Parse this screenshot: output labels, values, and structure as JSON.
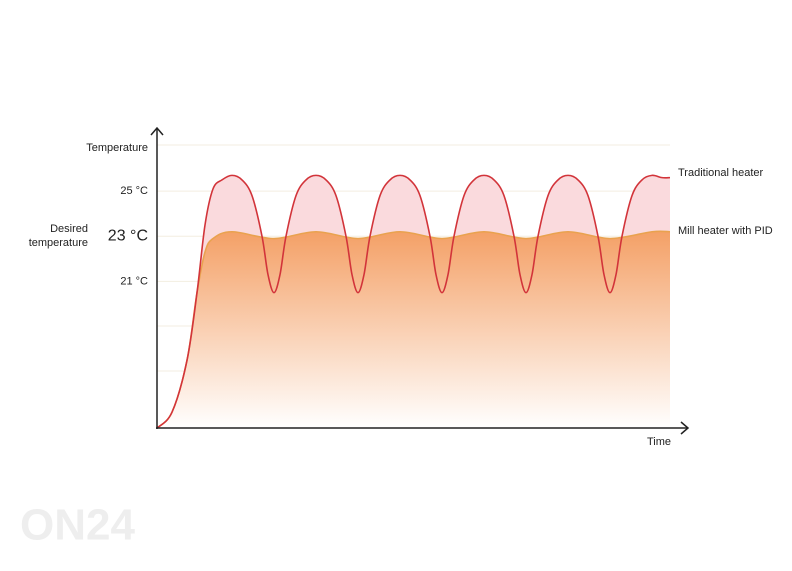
{
  "chart_data": {
    "type": "line",
    "y_label": "Temperature",
    "x_label": "Time",
    "annotation": "Desired temperature",
    "watermark": "ON24",
    "ylim": [
      14.5,
      27.8
    ],
    "yticks": [
      {
        "value": 25,
        "label": "25 °C"
      },
      {
        "value": 23,
        "label": "23 °C"
      },
      {
        "value": 21,
        "label": "21 °C"
      }
    ],
    "xlim": [
      0,
      513
    ],
    "grid": true,
    "series": [
      {
        "name": "Traditional heater",
        "color": "#d2343a",
        "fill": "#fadadd",
        "x": [
          0,
          15,
          30,
          40,
          48,
          56,
          65,
          75,
          85,
          95,
          105,
          111,
          117,
          123,
          129,
          139,
          149,
          159,
          169,
          179,
          189,
          195,
          201,
          207,
          213,
          223,
          233,
          243,
          253,
          263,
          273,
          279,
          285,
          291,
          297,
          307,
          317,
          327,
          337,
          347,
          357,
          363,
          369,
          375,
          381,
          391,
          401,
          411,
          421,
          431,
          441,
          447,
          453,
          459,
          465,
          475,
          485,
          495,
          505,
          513
        ],
        "values": [
          14.5,
          15.2,
          17.5,
          20.5,
          23.5,
          25.1,
          25.5,
          25.7,
          25.5,
          24.8,
          23,
          21.3,
          20.5,
          21.3,
          23,
          24.8,
          25.5,
          25.7,
          25.5,
          24.8,
          23,
          21.3,
          20.5,
          21.3,
          23,
          24.8,
          25.5,
          25.7,
          25.5,
          24.8,
          23,
          21.3,
          20.5,
          21.3,
          23,
          24.8,
          25.5,
          25.7,
          25.5,
          24.8,
          23,
          21.3,
          20.5,
          21.3,
          23,
          24.8,
          25.5,
          25.7,
          25.5,
          24.8,
          23,
          21.3,
          20.5,
          21.3,
          23,
          24.8,
          25.5,
          25.7,
          25.6,
          25.6
        ]
      },
      {
        "name": "Mill heater with PID",
        "color": "#e9a24f",
        "fill": "#f4a066",
        "x": [
          0,
          15,
          30,
          40,
          48,
          56,
          75,
          117,
          159,
          201,
          243,
          285,
          327,
          369,
          411,
          453,
          495,
          513
        ],
        "values": [
          14.5,
          15.2,
          17.5,
          20.5,
          22.3,
          22.9,
          23.2,
          22.9,
          23.2,
          22.9,
          23.2,
          22.9,
          23.2,
          22.9,
          23.2,
          22.9,
          23.2,
          23.2
        ]
      }
    ]
  }
}
